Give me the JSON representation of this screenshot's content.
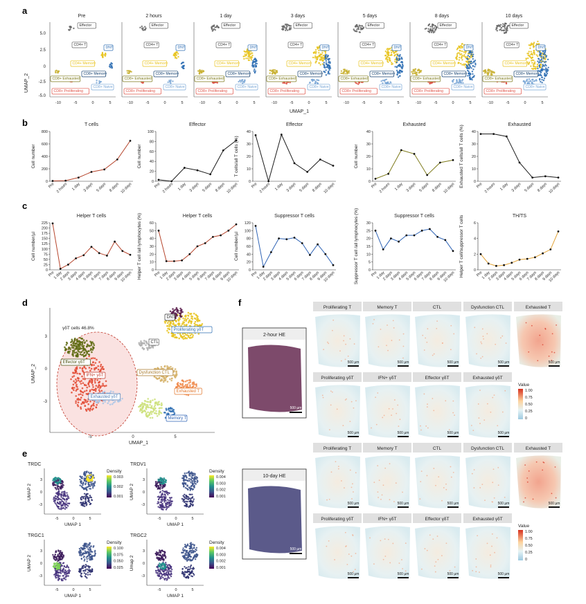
{
  "colors": {
    "exhausted": "#c9b234",
    "proliferating": "#e0554a",
    "memory": "#7aa7d6",
    "cd8memory": "#2d6db3",
    "effector": "#666666",
    "dnt": "#123f6e",
    "cd4memory": "#e8c31d",
    "redline": "#b5432a",
    "blackline": "#1a1a1a",
    "oliveline": "#7d7a1a",
    "blueline": "#2e63b5",
    "orangeline": "#e1a133"
  },
  "panel_letters": {
    "a": "a",
    "b": "b",
    "c": "c",
    "d": "d",
    "e": "e",
    "f": "f"
  },
  "panel_a": {
    "timepoints": [
      "Pre",
      "2 hours",
      "1 day",
      "3 days",
      "5 days",
      "8 days",
      "10 days"
    ],
    "ylabel": "UMAP_2",
    "xlabel": "UMAP_1",
    "yticks": [
      "5.0",
      "2.5",
      "0",
      "-2.5",
      "-5.0"
    ],
    "xticks": [
      "-10",
      "-5",
      "0",
      "5"
    ],
    "labels": {
      "effector": "Effector",
      "cd4t": "CD4+ T",
      "dnt": "DNT",
      "cd4mem": "CD4+ Memory",
      "cd8exh": "CD8+ Exhausted",
      "cd8mem": "CD8+ Memory",
      "cd8prolif": "CD8+ Proliferating",
      "cd8naive": "CD8+ Naive"
    }
  },
  "panel_b": {
    "charts": [
      {
        "title": "T cells",
        "ylabel": "Cell number",
        "yticks": [
          "0",
          "200",
          "400",
          "600",
          "800"
        ],
        "ymax": 800,
        "values": [
          5,
          10,
          60,
          150,
          190,
          350,
          650
        ],
        "color": "redline"
      },
      {
        "title": "Effector",
        "ylabel": "Cell number",
        "yticks": [
          "0",
          "20",
          "40",
          "60",
          "80",
          "100"
        ],
        "ymax": 100,
        "values": [
          3,
          0,
          27,
          22,
          14,
          62,
          82
        ],
        "color": "blackline"
      },
      {
        "title": "Effector",
        "ylabel": "T cells/all T cells (%)",
        "yticks": [
          "0",
          "10",
          "20",
          "30",
          "40"
        ],
        "ymax": 40,
        "values": [
          37,
          0,
          37.5,
          14.5,
          7.5,
          17.5,
          12.5
        ],
        "color": "blackline"
      },
      {
        "title": "Exhausted",
        "ylabel": "Cell number",
        "yticks": [
          "0",
          "10",
          "20",
          "30",
          "40"
        ],
        "ymax": 40,
        "values": [
          2,
          6,
          25,
          22,
          5,
          15,
          17
        ],
        "color": "oliveline"
      },
      {
        "title": "Exhausted",
        "ylabel": "Exhausted T cells/all T cells (%)",
        "yticks": [
          "0",
          "10",
          "20",
          "30",
          "40"
        ],
        "ymax": 40,
        "values": [
          38,
          38,
          36,
          15,
          3,
          4,
          3
        ],
        "color": "blackline"
      }
    ],
    "categories": [
      "Pre",
      "2 hours",
      "1 day",
      "3 days",
      "5 days",
      "8 days",
      "10 days"
    ]
  },
  "panel_c": {
    "categories": [
      "Pre",
      "1 day",
      "2 days",
      "3 days",
      "4 days",
      "5 days",
      "6 days",
      "7 days",
      "8 days",
      "9 days",
      "10 days"
    ],
    "charts": [
      {
        "title": "Helper T cells",
        "ylabel": "Cell number/µl",
        "yticks": [
          "0",
          "25",
          "50",
          "75",
          "100",
          "125",
          "150",
          "175",
          "200",
          "225"
        ],
        "ymax": 225,
        "values": [
          222,
          5,
          25,
          55,
          70,
          110,
          80,
          68,
          135,
          90,
          72
        ],
        "color": "redline"
      },
      {
        "title": "Helper T cells",
        "ylabel": "Helper T cell /all lymphocytes (%)",
        "yticks": [
          "0",
          "10",
          "20",
          "30",
          "40",
          "50",
          "60"
        ],
        "ymax": 60,
        "values": [
          50,
          11,
          11,
          12,
          20,
          30,
          34,
          42,
          44,
          50,
          58
        ],
        "color": "redline"
      },
      {
        "title": "Suppressor T cells",
        "ylabel": "Cell number/µl",
        "yticks": [
          "0",
          "20",
          "40",
          "60",
          "80",
          "100",
          "120"
        ],
        "ymax": 120,
        "values": [
          112,
          8,
          45,
          80,
          78,
          82,
          68,
          38,
          65,
          40,
          12
        ],
        "color": "blueline"
      },
      {
        "title": "Suppressor T cells",
        "ylabel": "Suppressor T cell /all lymphocytes (%)",
        "yticks": [
          "0",
          "5",
          "10",
          "15",
          "20",
          "25",
          "30"
        ],
        "ymax": 30,
        "values": [
          25,
          13,
          20,
          18,
          22,
          22,
          25,
          26,
          21,
          19,
          12
        ],
        "color": "blueline"
      },
      {
        "title": "TH/TS",
        "ylabel": "Helper T cell/suppressor T cells",
        "yticks": [
          "0",
          "2",
          "4",
          "6"
        ],
        "ymax": 6,
        "values": [
          2.0,
          0.8,
          0.5,
          0.6,
          0.9,
          1.3,
          1.4,
          1.6,
          2.1,
          2.6,
          4.9
        ],
        "color": "orangeline"
      }
    ]
  },
  "panel_d": {
    "ylabel": "UMAP_2",
    "xlabel": "UMAP_1",
    "yticks": [
      "3",
      "0",
      "-3"
    ],
    "xticks": [
      "-5",
      "0",
      "5"
    ],
    "gd_note": "γδT cells 46.8%",
    "labels": {
      "dnt": "DNT",
      "prolif_gd": "Proliferating γδT",
      "ctl": "CTL",
      "effector_gd": "Effector γδT",
      "ifn_gd": "IFN+ γδT",
      "dysf": "Dysfunction CTL",
      "exh_gd": "Exhausted γδT",
      "exh_t": "Exhausted T",
      "memory_t": "Memory T"
    }
  },
  "panel_e": {
    "plots": [
      {
        "gene": "TRDC",
        "legend": [
          "0.003",
          "0.002",
          "0.001"
        ],
        "ylabel": "UMAP 2"
      },
      {
        "gene": "TRDV1",
        "legend": [
          "0.004",
          "0.003",
          "0.002",
          "0.001"
        ],
        "ylabel": "UMAP 2"
      },
      {
        "gene": "TRGC1",
        "legend": [
          "0.100",
          "0.075",
          "0.050",
          "0.025"
        ],
        "ylabel": "UMAP 2"
      },
      {
        "gene": "TRGC2",
        "legend": [
          "0.004",
          "0.003",
          "0.002",
          "0.001"
        ],
        "ylabel": "Umap 2"
      }
    ],
    "legend_title": "Density",
    "xlabel": "UMAP 1",
    "xticks": [
      "-5",
      "0",
      "5"
    ],
    "yticks": [
      "3",
      "0",
      "-3"
    ]
  },
  "panel_f": {
    "he_top": "2-hour HE",
    "he_bottom": "10-day HE",
    "scalebar": "500 µm",
    "row1": [
      "Proliferating T",
      "Memory T",
      "CTL",
      "Dysfunction CTL",
      "Exhausted T"
    ],
    "row2": [
      "Proliferating γδT",
      "IFN+ γδT",
      "Effector γδT",
      "Exhausted γδT"
    ],
    "legend_title": "Value",
    "legend_ticks": [
      "1.00",
      "0.75",
      "0.50",
      "0.25",
      "0"
    ]
  }
}
